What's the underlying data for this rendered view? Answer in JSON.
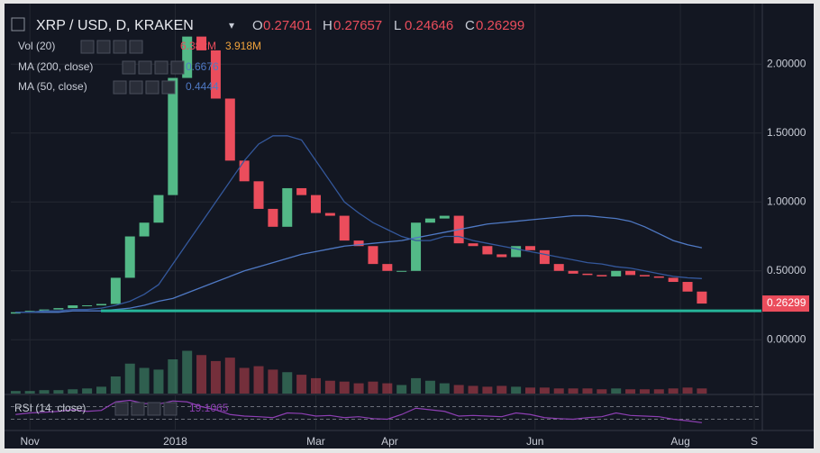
{
  "chart_data": {
    "type": "candlestick",
    "title": "XRP / USD, D, KRAKEN",
    "ohlc_labels": [
      "O",
      "H",
      "L",
      "C"
    ],
    "ohlc": [
      0.27401,
      0.27657,
      0.24646,
      0.26299
    ],
    "x": [
      -6,
      0,
      6,
      12,
      18,
      24,
      30,
      36,
      42,
      48,
      54,
      60,
      66,
      72,
      78,
      84,
      90,
      96,
      102,
      108,
      114,
      120,
      126,
      132,
      138,
      144,
      150,
      156,
      162,
      168,
      174,
      180,
      186,
      192,
      198,
      204,
      210,
      216,
      222,
      228,
      234,
      240,
      246,
      252,
      258,
      264,
      270,
      276,
      282
    ],
    "open": [
      0.19,
      0.2,
      0.21,
      0.22,
      0.23,
      0.25,
      0.25,
      0.26,
      0.45,
      0.75,
      0.85,
      1.05,
      1.9,
      2.2,
      2.1,
      1.75,
      1.3,
      1.15,
      0.95,
      0.82,
      1.1,
      1.05,
      0.92,
      0.9,
      0.72,
      0.68,
      0.55,
      0.5,
      0.5,
      0.85,
      0.88,
      0.9,
      0.7,
      0.68,
      0.62,
      0.6,
      0.68,
      0.65,
      0.55,
      0.5,
      0.48,
      0.47,
      0.46,
      0.5,
      0.47,
      0.46,
      0.45,
      0.42,
      0.35
    ],
    "close": [
      0.2,
      0.21,
      0.22,
      0.23,
      0.25,
      0.25,
      0.26,
      0.45,
      0.75,
      0.85,
      1.05,
      1.9,
      2.2,
      2.1,
      1.75,
      1.3,
      1.15,
      0.95,
      0.82,
      1.1,
      1.05,
      0.92,
      0.9,
      0.72,
      0.68,
      0.55,
      0.5,
      0.5,
      0.85,
      0.88,
      0.9,
      0.7,
      0.68,
      0.62,
      0.6,
      0.68,
      0.65,
      0.55,
      0.5,
      0.48,
      0.47,
      0.46,
      0.5,
      0.47,
      0.46,
      0.45,
      0.42,
      0.35,
      0.26299
    ],
    "up_color": "#53b987",
    "down_color": "#eb4d5c",
    "xlim": [
      -8,
      307
    ],
    "xticks": [
      {
        "value": 0,
        "label": "Nov"
      },
      {
        "value": 61,
        "label": "2018"
      },
      {
        "value": 120,
        "label": "Mar"
      },
      {
        "value": 151,
        "label": "Apr"
      },
      {
        "value": 212,
        "label": "Jun"
      },
      {
        "value": 273,
        "label": "Aug"
      },
      {
        "value": 304,
        "label": "S"
      }
    ],
    "ylim": [
      -0.39,
      2.4
    ],
    "yticks": [
      {
        "value": 0,
        "label": "0.00000"
      },
      {
        "value": 0.5,
        "label": "0.50000"
      },
      {
        "value": 1,
        "label": "1.00000"
      },
      {
        "value": 1.5,
        "label": "1.50000"
      },
      {
        "value": 2,
        "label": "2.00000"
      }
    ],
    "grid": true,
    "last_price": 0.26299,
    "support_line": {
      "value": 0.21,
      "color": "#26b59a"
    },
    "volume": {
      "name": "Vol (20)",
      "values": [
        6.382,
        3.918
      ],
      "value_labels": [
        "6.382M",
        "3.918M"
      ],
      "ylim": [
        0,
        60
      ],
      "bars": [
        3,
        3,
        4,
        4,
        5,
        6,
        8,
        20,
        35,
        30,
        28,
        40,
        50,
        45,
        38,
        42,
        30,
        32,
        28,
        25,
        22,
        18,
        15,
        14,
        12,
        14,
        12,
        10,
        18,
        15,
        12,
        10,
        9,
        8,
        9,
        8,
        7,
        7,
        6,
        6,
        6,
        5,
        6,
        5,
        5,
        5,
        6,
        7,
        6
      ]
    },
    "ma": [
      {
        "name": "MA (200, close)",
        "value": 0.6676,
        "color": "#4f79c4",
        "values": [
          0.2,
          0.2,
          0.2,
          0.2,
          0.21,
          0.21,
          0.21,
          0.22,
          0.23,
          0.25,
          0.28,
          0.3,
          0.34,
          0.38,
          0.42,
          0.46,
          0.5,
          0.53,
          0.56,
          0.59,
          0.62,
          0.64,
          0.66,
          0.68,
          0.69,
          0.7,
          0.71,
          0.72,
          0.74,
          0.76,
          0.78,
          0.8,
          0.82,
          0.84,
          0.85,
          0.86,
          0.87,
          0.88,
          0.89,
          0.9,
          0.9,
          0.89,
          0.88,
          0.86,
          0.82,
          0.77,
          0.72,
          0.69,
          0.6676
        ]
      },
      {
        "name": "MA (50, close)",
        "value": 0.4444,
        "color": "#34589c",
        "values": [
          0.2,
          0.2,
          0.21,
          0.21,
          0.22,
          0.22,
          0.23,
          0.25,
          0.28,
          0.33,
          0.4,
          0.55,
          0.7,
          0.85,
          1.0,
          1.15,
          1.3,
          1.42,
          1.48,
          1.48,
          1.45,
          1.3,
          1.15,
          1.0,
          0.92,
          0.85,
          0.8,
          0.75,
          0.72,
          0.72,
          0.75,
          0.75,
          0.72,
          0.7,
          0.68,
          0.66,
          0.64,
          0.62,
          0.6,
          0.58,
          0.56,
          0.55,
          0.53,
          0.52,
          0.5,
          0.48,
          0.46,
          0.45,
          0.4444
        ]
      }
    ],
    "rsi": {
      "name": "RSI (14, close)",
      "value": 19.1065,
      "color": "#8e3fb3",
      "ylim": [
        0,
        100
      ],
      "bands": [
        70,
        30
      ],
      "values": [
        45,
        50,
        52,
        55,
        60,
        55,
        58,
        85,
        90,
        80,
        78,
        88,
        85,
        70,
        60,
        45,
        40,
        38,
        35,
        50,
        48,
        40,
        42,
        35,
        38,
        32,
        30,
        45,
        65,
        60,
        55,
        40,
        42,
        40,
        38,
        50,
        45,
        35,
        32,
        30,
        35,
        38,
        50,
        42,
        40,
        38,
        30,
        25,
        19.1065
      ]
    }
  }
}
